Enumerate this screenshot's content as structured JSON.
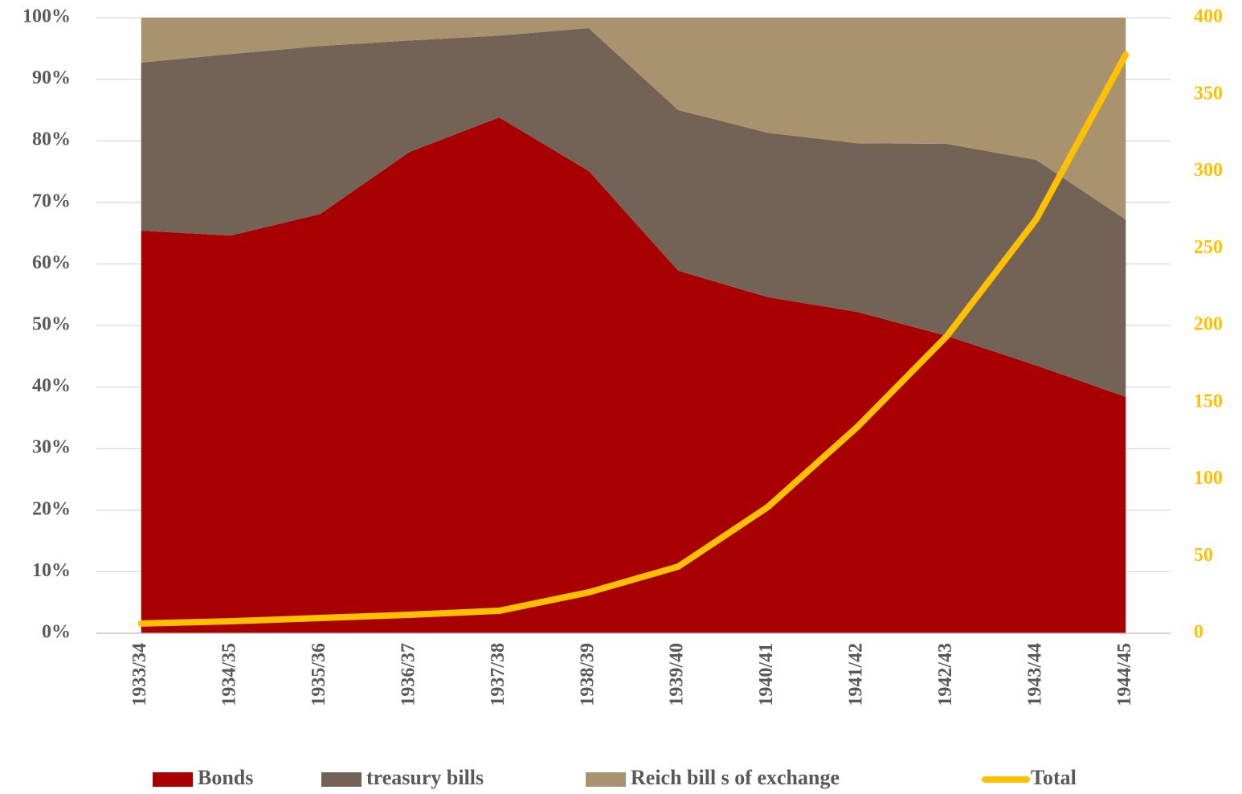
{
  "chart_data": {
    "type": "area",
    "stacked": true,
    "categories": [
      "1933/34",
      "1934/35",
      "1935/36",
      "1936/37",
      "1937/38",
      "1938/39",
      "1939/40",
      "1940/41",
      "1941/42",
      "1942/43",
      "1943/44",
      "1944/45"
    ],
    "series": [
      {
        "name": "Bonds",
        "color": "#a80000",
        "values": [
          65.4,
          64.6,
          68.1,
          78.2,
          83.8,
          75.1,
          58.9,
          54.6,
          52.2,
          48.3,
          43.5,
          38.4
        ]
      },
      {
        "name": "treasury bills",
        "color": "#736357",
        "values": [
          27.3,
          29.5,
          27.3,
          18.1,
          13.3,
          23.2,
          26.1,
          26.7,
          27.4,
          31.2,
          33.4,
          28.8
        ]
      },
      {
        "name": "Reich bill s of exchange",
        "color": "#a9936f",
        "values": [
          7.3,
          5.9,
          4.6,
          3.7,
          2.9,
          1.7,
          15.0,
          18.7,
          20.4,
          20.5,
          23.1,
          32.8
        ]
      },
      {
        "name": "Total",
        "color": "#ffc000",
        "type": "line",
        "axis": "y2",
        "values": [
          6.3,
          7.8,
          9.9,
          12,
          14.6,
          26.6,
          43.3,
          82,
          134,
          193,
          269,
          376
        ]
      }
    ],
    "ylim": [
      0,
      100
    ],
    "yticks": [
      {
        "value": 0,
        "label": "0%"
      },
      {
        "value": 10,
        "label": "10%"
      },
      {
        "value": 20,
        "label": "20%"
      },
      {
        "value": 30,
        "label": "30%"
      },
      {
        "value": 40,
        "label": "40%"
      },
      {
        "value": 50,
        "label": "50%"
      },
      {
        "value": 60,
        "label": "60%"
      },
      {
        "value": 70,
        "label": "70%"
      },
      {
        "value": 80,
        "label": "80%"
      },
      {
        "value": 90,
        "label": "90%"
      },
      {
        "value": 100,
        "label": "100%"
      }
    ],
    "y2lim": [
      0,
      400
    ],
    "y2ticks": [
      0,
      50,
      100,
      150,
      200,
      250,
      300,
      350,
      400
    ],
    "grid": true,
    "legend": "bottom"
  }
}
